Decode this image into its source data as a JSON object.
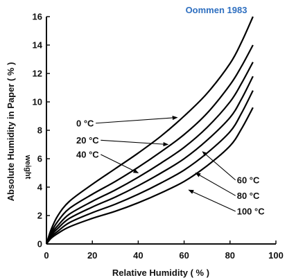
{
  "annotation": "Oommen 1983",
  "colors": {
    "annotation": "#2e6fc0",
    "axis": "#111111",
    "curve": "#000000"
  },
  "chart_data": {
    "type": "line",
    "title": "",
    "xlabel": "Relative  Humidity ( % )",
    "ylabel": "Absolute Humidity in Paper ( % )",
    "ylabel_overlay": "weight",
    "xlim": [
      0,
      100
    ],
    "ylim": [
      0,
      16
    ],
    "xticks": [
      "0",
      "20",
      "40",
      "60",
      "80",
      "100"
    ],
    "yticks": [
      "0",
      "2",
      "4",
      "6",
      "8",
      "10",
      "12",
      "14",
      "16"
    ],
    "grid": false,
    "legend": "none",
    "series": [
      {
        "name": "0 °C",
        "points": [
          [
            0,
            0
          ],
          [
            2,
            1.0
          ],
          [
            5,
            2.0
          ],
          [
            10,
            3.0
          ],
          [
            20,
            4.2
          ],
          [
            30,
            5.3
          ],
          [
            40,
            6.4
          ],
          [
            50,
            7.6
          ],
          [
            60,
            9.0
          ],
          [
            70,
            10.6
          ],
          [
            80,
            12.7
          ],
          [
            85,
            14.2
          ],
          [
            90,
            16.0
          ]
        ],
        "label_at": [
          0.13,
          8.5
        ],
        "arrow_to": [
          57,
          8.9
        ]
      },
      {
        "name": "20 °C",
        "points": [
          [
            0,
            0
          ],
          [
            2,
            0.8
          ],
          [
            5,
            1.6
          ],
          [
            10,
            2.5
          ],
          [
            20,
            3.5
          ],
          [
            30,
            4.4
          ],
          [
            40,
            5.4
          ],
          [
            50,
            6.5
          ],
          [
            60,
            7.7
          ],
          [
            70,
            9.2
          ],
          [
            80,
            11.2
          ],
          [
            85,
            12.5
          ],
          [
            90,
            14.0
          ]
        ],
        "label_at": [
          0.13,
          7.3
        ],
        "arrow_to": [
          53,
          7.0
        ]
      },
      {
        "name": "40 °C",
        "points": [
          [
            0,
            0
          ],
          [
            2,
            0.7
          ],
          [
            5,
            1.3
          ],
          [
            10,
            2.1
          ],
          [
            20,
            3.0
          ],
          [
            30,
            3.8
          ],
          [
            40,
            4.7
          ],
          [
            50,
            5.7
          ],
          [
            60,
            6.8
          ],
          [
            70,
            8.2
          ],
          [
            80,
            10.0
          ],
          [
            85,
            11.3
          ],
          [
            90,
            12.8
          ]
        ],
        "label_at": [
          0.13,
          6.3
        ],
        "arrow_to": [
          40,
          5.0
        ]
      },
      {
        "name": "60 °C",
        "points": [
          [
            0,
            0
          ],
          [
            2,
            0.6
          ],
          [
            5,
            1.1
          ],
          [
            10,
            1.8
          ],
          [
            20,
            2.6
          ],
          [
            30,
            3.3
          ],
          [
            40,
            4.1
          ],
          [
            50,
            5.0
          ],
          [
            60,
            6.0
          ],
          [
            70,
            7.3
          ],
          [
            80,
            8.9
          ],
          [
            85,
            10.2
          ],
          [
            90,
            11.8
          ]
        ],
        "label_at": [
          0.83,
          4.5
        ],
        "arrow_to": [
          68,
          6.5
        ]
      },
      {
        "name": "80 °C",
        "points": [
          [
            0,
            0
          ],
          [
            2,
            0.5
          ],
          [
            5,
            0.9
          ],
          [
            10,
            1.5
          ],
          [
            20,
            2.2
          ],
          [
            30,
            2.8
          ],
          [
            40,
            3.5
          ],
          [
            50,
            4.3
          ],
          [
            60,
            5.2
          ],
          [
            70,
            6.4
          ],
          [
            80,
            7.9
          ],
          [
            85,
            9.2
          ],
          [
            90,
            10.8
          ]
        ],
        "label_at": [
          0.83,
          3.4
        ],
        "arrow_to": [
          65,
          5.0
        ]
      },
      {
        "name": "100 °C",
        "points": [
          [
            0,
            0
          ],
          [
            2,
            0.4
          ],
          [
            5,
            0.75
          ],
          [
            10,
            1.2
          ],
          [
            20,
            1.8
          ],
          [
            30,
            2.3
          ],
          [
            40,
            2.9
          ],
          [
            50,
            3.6
          ],
          [
            60,
            4.4
          ],
          [
            70,
            5.5
          ],
          [
            80,
            6.9
          ],
          [
            85,
            8.1
          ],
          [
            90,
            9.6
          ]
        ],
        "label_at": [
          0.83,
          2.3
        ],
        "arrow_to": [
          62,
          3.8
        ]
      }
    ]
  }
}
